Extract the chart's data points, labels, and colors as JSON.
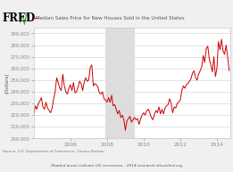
{
  "title": "Median Sales Price for New Houses Sold in the United States",
  "ylabel": "(Dollars)",
  "source_text": "Source: U.S. Department of Commerce: Census Bureau",
  "bottom_text": "Shaded areas indicate US recessions - 2014 research.stlouisfed.org",
  "fred_label": "FRED",
  "ylim": [
    200000,
    295000
  ],
  "yticks": [
    200000,
    210000,
    220000,
    230000,
    240000,
    250000,
    260000,
    270000,
    280000,
    290000
  ],
  "ytick_labels": [
    "200,000",
    "210,000",
    "220,000",
    "230,000",
    "240,000",
    "250,000",
    "260,000",
    "270,000",
    "280,000",
    "290,000"
  ],
  "xtick_labels": [
    "2006",
    "2008",
    "2010",
    "2012",
    "2014"
  ],
  "xtick_pos": [
    2006,
    2008,
    2010,
    2012,
    2014
  ],
  "recession_start": 2007.917,
  "recession_end": 2009.5,
  "line_color": "#cc0000",
  "recession_color": "#dddddd",
  "bg_color": "#f0f0f0",
  "plot_bg": "#ffffff",
  "fred_color": "#000000",
  "title_color": "#333333",
  "xlim": [
    2004.0,
    2014.75
  ],
  "data": [
    [
      2004.0,
      221000
    ],
    [
      2004.083,
      228000
    ],
    [
      2004.167,
      225000
    ],
    [
      2004.25,
      230000
    ],
    [
      2004.333,
      232000
    ],
    [
      2004.417,
      235000
    ],
    [
      2004.5,
      227000
    ],
    [
      2004.583,
      225000
    ],
    [
      2004.667,
      231000
    ],
    [
      2004.75,
      226000
    ],
    [
      2004.833,
      224000
    ],
    [
      2004.917,
      222000
    ],
    [
      2005.0,
      226000
    ],
    [
      2005.083,
      234000
    ],
    [
      2005.167,
      240000
    ],
    [
      2005.25,
      252000
    ],
    [
      2005.333,
      248000
    ],
    [
      2005.417,
      243000
    ],
    [
      2005.5,
      241000
    ],
    [
      2005.583,
      255000
    ],
    [
      2005.667,
      245000
    ],
    [
      2005.75,
      240000
    ],
    [
      2005.833,
      238000
    ],
    [
      2005.917,
      243000
    ],
    [
      2006.0,
      246000
    ],
    [
      2006.083,
      241000
    ],
    [
      2006.167,
      248000
    ],
    [
      2006.25,
      239000
    ],
    [
      2006.333,
      240000
    ],
    [
      2006.417,
      244000
    ],
    [
      2006.5,
      249000
    ],
    [
      2006.583,
      247000
    ],
    [
      2006.667,
      241000
    ],
    [
      2006.75,
      248000
    ],
    [
      2006.833,
      252000
    ],
    [
      2006.917,
      249000
    ],
    [
      2007.0,
      250000
    ],
    [
      2007.083,
      261000
    ],
    [
      2007.167,
      263000
    ],
    [
      2007.25,
      245000
    ],
    [
      2007.333,
      247000
    ],
    [
      2007.417,
      246000
    ],
    [
      2007.5,
      244000
    ],
    [
      2007.583,
      239000
    ],
    [
      2007.667,
      238000
    ],
    [
      2007.75,
      240000
    ],
    [
      2007.833,
      234000
    ],
    [
      2007.917,
      233000
    ],
    [
      2008.0,
      231000
    ],
    [
      2008.083,
      235000
    ],
    [
      2008.167,
      231000
    ],
    [
      2008.25,
      237000
    ],
    [
      2008.333,
      228000
    ],
    [
      2008.417,
      229000
    ],
    [
      2008.5,
      225000
    ],
    [
      2008.583,
      221000
    ],
    [
      2008.667,
      224000
    ],
    [
      2008.75,
      218000
    ],
    [
      2008.833,
      220000
    ],
    [
      2008.917,
      216000
    ],
    [
      2009.0,
      207000
    ],
    [
      2009.083,
      215000
    ],
    [
      2009.167,
      217000
    ],
    [
      2009.25,
      219000
    ],
    [
      2009.333,
      214000
    ],
    [
      2009.417,
      216000
    ],
    [
      2009.5,
      218000
    ],
    [
      2009.583,
      216000
    ],
    [
      2009.667,
      217000
    ],
    [
      2009.75,
      212000
    ],
    [
      2009.833,
      217000
    ],
    [
      2009.917,
      220000
    ],
    [
      2010.0,
      222000
    ],
    [
      2010.083,
      220000
    ],
    [
      2010.167,
      224000
    ],
    [
      2010.25,
      225000
    ],
    [
      2010.333,
      222000
    ],
    [
      2010.417,
      218000
    ],
    [
      2010.5,
      216000
    ],
    [
      2010.583,
      220000
    ],
    [
      2010.667,
      224000
    ],
    [
      2010.75,
      222000
    ],
    [
      2010.833,
      227000
    ],
    [
      2010.917,
      221000
    ],
    [
      2011.0,
      225000
    ],
    [
      2011.083,
      221000
    ],
    [
      2011.167,
      226000
    ],
    [
      2011.25,
      228000
    ],
    [
      2011.333,
      229000
    ],
    [
      2011.417,
      234000
    ],
    [
      2011.5,
      230000
    ],
    [
      2011.583,
      222000
    ],
    [
      2011.667,
      227000
    ],
    [
      2011.75,
      226000
    ],
    [
      2011.833,
      230000
    ],
    [
      2011.917,
      231000
    ],
    [
      2012.0,
      233000
    ],
    [
      2012.083,
      241000
    ],
    [
      2012.167,
      245000
    ],
    [
      2012.25,
      243000
    ],
    [
      2012.333,
      246000
    ],
    [
      2012.417,
      247000
    ],
    [
      2012.5,
      249000
    ],
    [
      2012.583,
      251000
    ],
    [
      2012.667,
      256000
    ],
    [
      2012.75,
      258000
    ],
    [
      2012.833,
      252000
    ],
    [
      2012.917,
      250000
    ],
    [
      2013.0,
      255000
    ],
    [
      2013.083,
      258000
    ],
    [
      2013.167,
      261000
    ],
    [
      2013.25,
      271000
    ],
    [
      2013.333,
      265000
    ],
    [
      2013.417,
      277000
    ],
    [
      2013.5,
      279000
    ],
    [
      2013.583,
      268000
    ],
    [
      2013.667,
      263000
    ],
    [
      2013.75,
      257000
    ],
    [
      2013.833,
      270000
    ],
    [
      2013.917,
      253000
    ],
    [
      2014.0,
      260000
    ],
    [
      2014.083,
      283000
    ],
    [
      2014.167,
      276000
    ],
    [
      2014.25,
      285000
    ],
    [
      2014.333,
      275000
    ],
    [
      2014.417,
      272000
    ],
    [
      2014.5,
      280000
    ],
    [
      2014.583,
      270000
    ],
    [
      2014.667,
      258000
    ]
  ]
}
